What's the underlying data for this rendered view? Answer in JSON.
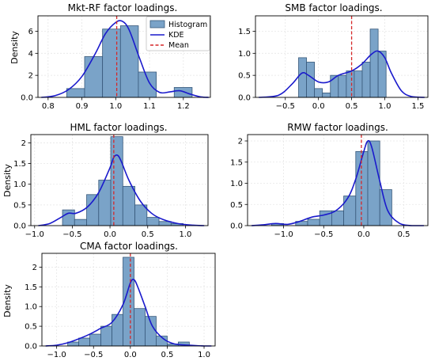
{
  "colors": {
    "hist_fill": "#7aa3c8",
    "hist_edge": "#37587a",
    "kde": "#1a1acc",
    "mean": "#d62728",
    "grid": "#e6e6e6"
  },
  "legend": {
    "placement": "top-right of first panel",
    "entries": [
      "Histogram",
      "KDE",
      "Mean"
    ]
  },
  "chart_data": [
    {
      "type": "histogram",
      "title": "Mkt-RF factor loadings.",
      "ylabel": "Density",
      "xlim": [
        0.77,
        1.28
      ],
      "ylim": [
        0,
        7.4
      ],
      "xticks": [
        0.8,
        0.9,
        1.0,
        1.1,
        1.2
      ],
      "xtick_labels": [
        "0.8",
        "0.9",
        "1.0",
        "1.1",
        "1.2"
      ],
      "yticks": [
        0,
        2,
        4,
        6
      ],
      "bin_edges": [
        0.855,
        0.908,
        0.961,
        1.014,
        1.067,
        1.12,
        1.173,
        1.226
      ],
      "densities": [
        0.8,
        3.7,
        6.2,
        6.5,
        2.3,
        0.0,
        0.9
      ],
      "mean": 1.003,
      "kde": {
        "x": [
          0.78,
          0.82,
          0.86,
          0.9,
          0.94,
          0.97,
          1.0,
          1.02,
          1.04,
          1.07,
          1.1,
          1.13,
          1.16,
          1.19,
          1.22,
          1.25,
          1.275
        ],
        "y": [
          0.0,
          0.15,
          0.7,
          1.9,
          4.0,
          5.8,
          6.8,
          6.9,
          6.1,
          3.6,
          1.3,
          0.45,
          0.5,
          0.6,
          0.3,
          0.05,
          0.0
        ]
      }
    },
    {
      "type": "histogram",
      "title": "SMB factor loadings.",
      "ylabel": "",
      "xlim": [
        -0.95,
        1.65
      ],
      "ylim": [
        0,
        1.85
      ],
      "xticks": [
        -0.5,
        0.0,
        0.5,
        1.0,
        1.5
      ],
      "xtick_labels": [
        "−0.5",
        "0.0",
        "0.5",
        "1.0",
        "1.5"
      ],
      "yticks": [
        0.0,
        0.5,
        1.0,
        1.5
      ],
      "bin_edges": [
        -0.3,
        -0.18,
        -0.06,
        0.06,
        0.18,
        0.3,
        0.42,
        0.54,
        0.66,
        0.78,
        0.9,
        1.02
      ],
      "densities": [
        0.9,
        0.8,
        0.2,
        0.1,
        0.5,
        0.5,
        0.6,
        0.6,
        0.8,
        1.55,
        1.05
      ],
      "mean": 0.5,
      "kde": {
        "x": [
          -0.9,
          -0.6,
          -0.4,
          -0.25,
          -0.15,
          0.0,
          0.15,
          0.3,
          0.5,
          0.65,
          0.8,
          0.9,
          1.0,
          1.1,
          1.25,
          1.4,
          1.6
        ],
        "y": [
          0.0,
          0.05,
          0.3,
          0.55,
          0.5,
          0.35,
          0.35,
          0.5,
          0.6,
          0.75,
          0.98,
          1.05,
          0.9,
          0.55,
          0.15,
          0.02,
          0.0
        ]
      }
    },
    {
      "type": "histogram",
      "title": "HML factor loadings.",
      "ylabel": "Density",
      "xlim": [
        -1.05,
        1.3
      ],
      "ylim": [
        0,
        2.2
      ],
      "xticks": [
        -1.0,
        -0.5,
        0.0,
        0.5,
        1.0
      ],
      "xtick_labels": [
        "−1.0",
        "−0.5",
        "0.0",
        "0.5",
        "1.0"
      ],
      "yticks": [
        0.0,
        0.5,
        1.0,
        1.5,
        2.0
      ],
      "bin_edges": [
        -0.63,
        -0.47,
        -0.31,
        -0.15,
        0.01,
        0.17,
        0.33,
        0.49,
        0.65,
        0.81,
        0.97
      ],
      "densities": [
        0.38,
        0.15,
        0.75,
        1.1,
        2.15,
        0.95,
        0.5,
        0.2,
        0.1,
        0.05
      ],
      "mean": 0.05,
      "kde": {
        "x": [
          -0.95,
          -0.8,
          -0.65,
          -0.55,
          -0.45,
          -0.3,
          -0.15,
          0.0,
          0.05,
          0.1,
          0.15,
          0.25,
          0.4,
          0.55,
          0.7,
          0.9,
          1.1,
          1.25
        ],
        "y": [
          0.0,
          0.05,
          0.2,
          0.3,
          0.3,
          0.45,
          0.8,
          1.4,
          1.65,
          1.7,
          1.55,
          1.1,
          0.6,
          0.3,
          0.15,
          0.05,
          0.01,
          0.0
        ]
      }
    },
    {
      "type": "histogram",
      "title": "RMW factor loadings.",
      "ylabel": "",
      "xlim": [
        -1.45,
        0.8
      ],
      "ylim": [
        0,
        2.15
      ],
      "xticks": [
        -1.0,
        -0.5,
        0.0,
        0.5
      ],
      "xtick_labels": [
        "−1.0",
        "−0.5",
        "0.0",
        "0.5"
      ],
      "yticks": [
        0.0,
        0.5,
        1.0,
        1.5,
        2.0
      ],
      "bin_edges": [
        -1.15,
        -1.0,
        -0.85,
        -0.7,
        -0.55,
        -0.4,
        -0.25,
        -0.1,
        0.05,
        0.2,
        0.35
      ],
      "densities": [
        0.05,
        0.0,
        0.1,
        0.15,
        0.35,
        0.35,
        0.7,
        1.75,
        2.0,
        0.85
      ],
      "mean": -0.03,
      "kde": {
        "x": [
          -1.4,
          -1.25,
          -1.1,
          -0.95,
          -0.8,
          -0.65,
          -0.5,
          -0.35,
          -0.2,
          -0.1,
          0.0,
          0.05,
          0.1,
          0.2,
          0.3,
          0.45,
          0.6,
          0.75
        ],
        "y": [
          0.0,
          0.02,
          0.05,
          0.03,
          0.1,
          0.2,
          0.25,
          0.35,
          0.65,
          1.1,
          1.75,
          2.0,
          1.85,
          1.05,
          0.35,
          0.05,
          0.0,
          0.0
        ]
      }
    },
    {
      "type": "histogram",
      "title": "CMA factor loadings.",
      "ylabel": "Density",
      "xlim": [
        -1.2,
        1.15
      ],
      "ylim": [
        0,
        2.35
      ],
      "xticks": [
        -1.0,
        -0.5,
        0.0,
        0.5,
        1.0
      ],
      "xtick_labels": [
        "−1.0",
        "−0.5",
        "0.0",
        "0.5",
        "1.0"
      ],
      "yticks": [
        0.0,
        0.5,
        1.0,
        1.5,
        2.0
      ],
      "bin_edges": [
        -0.85,
        -0.7,
        -0.55,
        -0.4,
        -0.25,
        -0.1,
        0.05,
        0.2,
        0.35,
        0.5,
        0.65,
        0.8
      ],
      "densities": [
        0.1,
        0.2,
        0.3,
        0.5,
        0.8,
        2.25,
        0.95,
        0.75,
        0.25,
        0.05,
        0.1
      ],
      "mean": 0.0,
      "kde": {
        "x": [
          -1.15,
          -1.0,
          -0.85,
          -0.7,
          -0.55,
          -0.4,
          -0.25,
          -0.1,
          0.0,
          0.05,
          0.1,
          0.2,
          0.3,
          0.45,
          0.6,
          0.8,
          1.0,
          1.1
        ],
        "y": [
          0.0,
          0.02,
          0.08,
          0.18,
          0.3,
          0.45,
          0.6,
          1.05,
          1.6,
          1.68,
          1.5,
          1.0,
          0.5,
          0.18,
          0.05,
          0.02,
          0.0,
          0.0
        ]
      }
    }
  ]
}
